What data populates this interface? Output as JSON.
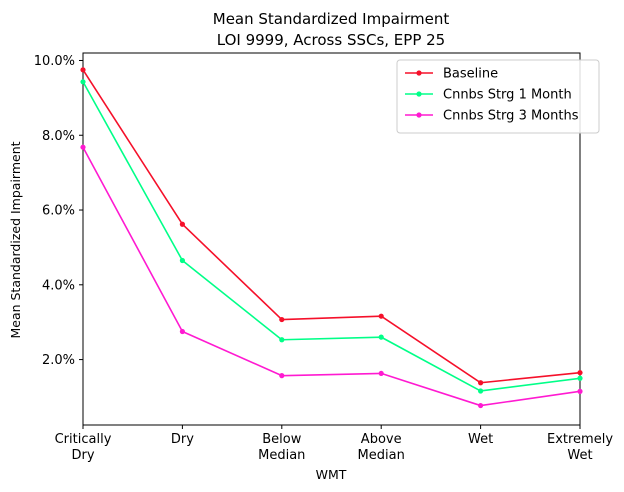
{
  "chart_data": {
    "type": "line",
    "title_line1": "Mean Standardized Impairment",
    "title_line2": "LOI 9999, Across SSCs, EPP 25",
    "xlabel": "WMT",
    "ylabel": "Mean Standardized Impairment",
    "categories": [
      [
        "Critically",
        "Dry"
      ],
      [
        "Dry"
      ],
      [
        "Below",
        "Median"
      ],
      [
        "Above",
        "Median"
      ],
      [
        "Wet"
      ],
      [
        "Extremely",
        "Wet"
      ]
    ],
    "yticks": [
      {
        "value": 2.0,
        "label": "2.0%"
      },
      {
        "value": 4.0,
        "label": "4.0%"
      },
      {
        "value": 6.0,
        "label": "6.0%"
      },
      {
        "value": 8.0,
        "label": "8.0%"
      },
      {
        "value": 10.0,
        "label": "10.0%"
      }
    ],
    "ylim": [
      0.25,
      10.2
    ],
    "grid": false,
    "legend_position": "top-right",
    "series": [
      {
        "name": "Baseline",
        "color": "#f5102a",
        "values": [
          9.75,
          5.62,
          3.07,
          3.16,
          1.38,
          1.65
        ]
      },
      {
        "name": "Cnnbs Strg 1 Month",
        "color": "#00ff88",
        "values": [
          9.43,
          4.65,
          2.53,
          2.6,
          1.16,
          1.5
        ]
      },
      {
        "name": "Cnnbs Strg 3 Months",
        "color": "#ff1ad1",
        "values": [
          7.68,
          2.75,
          1.57,
          1.63,
          0.77,
          1.15
        ]
      }
    ]
  }
}
